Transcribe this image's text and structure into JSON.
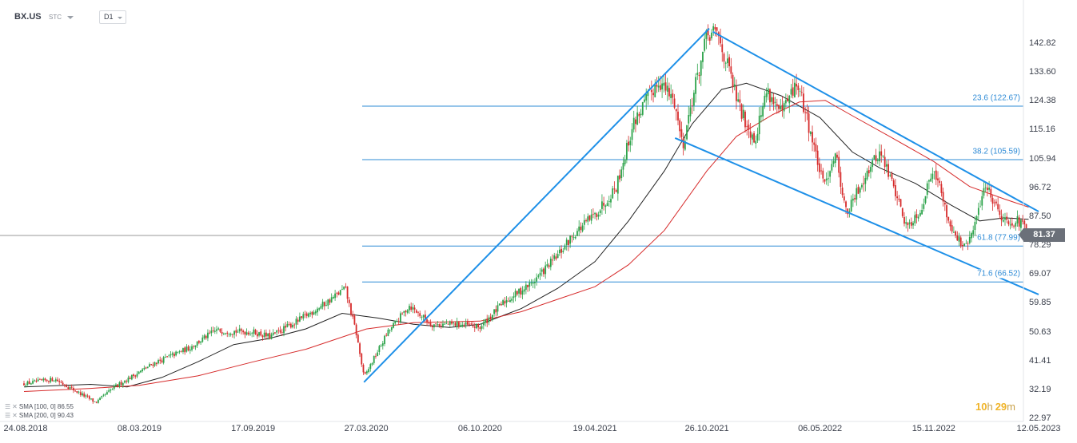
{
  "toolbar": {
    "symbol": "BX.US",
    "security_type": "STC",
    "timeframe": "D1"
  },
  "legend": [
    {
      "text": "SMA [100, 0] 86.55"
    },
    {
      "text": "SMA [200, 0] 90.43"
    }
  ],
  "timer": {
    "hours": "10",
    "hours_unit": "h",
    "minutes": "29",
    "minutes_unit": "m"
  },
  "last_price": "81.37",
  "colors": {
    "up": "#2ca34a",
    "down": "#d62b2b",
    "sma100": "#222222",
    "sma200": "#d62b2b",
    "trend": "#1e90e8",
    "fib": "#2e8bd6",
    "price_line": "#777777",
    "price_tag": "#6b7079",
    "timer": "#f0b429"
  },
  "chart_data": {
    "type": "candlestick",
    "title": "",
    "xlabel": "",
    "ylabel": "",
    "y_axis_side": "right",
    "ylim": [
      22.0,
      149.0
    ],
    "y_ticks": [
      "142.82",
      "133.60",
      "124.38",
      "115.16",
      "105.94",
      "96.72",
      "87.50",
      "78.29",
      "69.07",
      "59.85",
      "50.63",
      "41.41",
      "32.19",
      "22.97"
    ],
    "x_ticks": [
      "24.08.2018",
      "08.03.2019",
      "17.09.2019",
      "27.03.2020",
      "06.10.2020",
      "19.04.2021",
      "26.10.2021",
      "06.05.2022",
      "15.11.2022",
      "12.05.2023"
    ],
    "x_range": [
      "2018-08-24",
      "2023-05-12"
    ],
    "price_path": [
      [
        "2018-08-24",
        34.0
      ],
      [
        "2018-10-15",
        35.5
      ],
      [
        "2018-12-24",
        28.0
      ],
      [
        "2019-01-25",
        33.0
      ],
      [
        "2019-04-01",
        40.5
      ],
      [
        "2019-06-01",
        45.5
      ],
      [
        "2019-07-15",
        51.0
      ],
      [
        "2019-09-17",
        50.5
      ],
      [
        "2019-10-15",
        49.0
      ],
      [
        "2019-12-01",
        54.0
      ],
      [
        "2020-01-20",
        60.0
      ],
      [
        "2020-02-20",
        64.5
      ],
      [
        "2020-03-10",
        50.0
      ],
      [
        "2020-03-23",
        36.0
      ],
      [
        "2020-05-01",
        50.0
      ],
      [
        "2020-06-08",
        59.0
      ],
      [
        "2020-07-15",
        53.0
      ],
      [
        "2020-09-01",
        53.0
      ],
      [
        "2020-10-06",
        52.0
      ],
      [
        "2020-11-15",
        60.0
      ],
      [
        "2021-01-01",
        66.0
      ],
      [
        "2021-02-15",
        75.0
      ],
      [
        "2021-03-15",
        82.0
      ],
      [
        "2021-04-19",
        88.0
      ],
      [
        "2021-05-25",
        97.0
      ],
      [
        "2021-06-25",
        118.0
      ],
      [
        "2021-08-05",
        131.0
      ],
      [
        "2021-09-01",
        124.0
      ],
      [
        "2021-09-15",
        110.0
      ],
      [
        "2021-10-01",
        125.0
      ],
      [
        "2021-10-26",
        145.0
      ],
      [
        "2021-11-12",
        146.0
      ],
      [
        "2021-12-01",
        135.0
      ],
      [
        "2021-12-20",
        122.0
      ],
      [
        "2022-01-15",
        112.0
      ],
      [
        "2022-02-05",
        128.0
      ],
      [
        "2022-03-01",
        120.0
      ],
      [
        "2022-03-28",
        130.0
      ],
      [
        "2022-04-15",
        118.0
      ],
      [
        "2022-05-12",
        97.0
      ],
      [
        "2022-06-01",
        108.0
      ],
      [
        "2022-06-20",
        88.0
      ],
      [
        "2022-07-25",
        102.0
      ],
      [
        "2022-08-16",
        108.0
      ],
      [
        "2022-09-10",
        96.0
      ],
      [
        "2022-09-30",
        84.0
      ],
      [
        "2022-10-25",
        90.0
      ],
      [
        "2022-11-15",
        104.0
      ],
      [
        "2022-12-10",
        86.0
      ],
      [
        "2023-01-05",
        77.0
      ],
      [
        "2023-01-20",
        82.0
      ],
      [
        "2023-02-10",
        98.0
      ],
      [
        "2023-03-01",
        91.0
      ],
      [
        "2023-03-15",
        86.0
      ],
      [
        "2023-04-05",
        86.0
      ],
      [
        "2023-04-25",
        83.0
      ]
    ],
    "series": [
      {
        "name": "SMA [100, 0]",
        "points": [
          [
            "2018-08-24",
            33.0
          ],
          [
            "2018-12-15",
            33.8
          ],
          [
            "2019-02-15",
            33.0
          ],
          [
            "2019-04-15",
            36.0
          ],
          [
            "2019-06-15",
            41.0
          ],
          [
            "2019-08-15",
            46.5
          ],
          [
            "2019-10-15",
            48.5
          ],
          [
            "2019-12-15",
            51.5
          ],
          [
            "2020-02-15",
            56.5
          ],
          [
            "2020-04-15",
            55.0
          ],
          [
            "2020-06-15",
            53.0
          ],
          [
            "2020-08-15",
            52.0
          ],
          [
            "2020-10-06",
            53.0
          ],
          [
            "2020-12-15",
            58.0
          ],
          [
            "2021-02-15",
            64.5
          ],
          [
            "2021-04-19",
            73.0
          ],
          [
            "2021-06-15",
            86.0
          ],
          [
            "2021-08-15",
            102.0
          ],
          [
            "2021-10-01",
            117.0
          ],
          [
            "2021-11-20",
            128.0
          ],
          [
            "2022-01-01",
            130.0
          ],
          [
            "2022-03-01",
            126.0
          ],
          [
            "2022-05-06",
            119.0
          ],
          [
            "2022-06-30",
            108.0
          ],
          [
            "2022-08-15",
            103.0
          ],
          [
            "2022-10-15",
            98.0
          ],
          [
            "2022-12-15",
            91.0
          ],
          [
            "2023-02-01",
            86.0
          ],
          [
            "2023-03-15",
            87.0
          ],
          [
            "2023-04-25",
            86.55
          ]
        ]
      },
      {
        "name": "SMA [200, 0]",
        "points": [
          [
            "2018-08-24",
            31.5
          ],
          [
            "2018-12-15",
            32.5
          ],
          [
            "2019-03-08",
            33.5
          ],
          [
            "2019-06-15",
            36.5
          ],
          [
            "2019-09-17",
            41.0
          ],
          [
            "2019-12-15",
            45.0
          ],
          [
            "2020-03-27",
            51.5
          ],
          [
            "2020-06-15",
            53.5
          ],
          [
            "2020-10-06",
            54.0
          ],
          [
            "2020-12-15",
            57.0
          ],
          [
            "2021-02-15",
            61.0
          ],
          [
            "2021-04-19",
            65.0
          ],
          [
            "2021-06-15",
            72.0
          ],
          [
            "2021-08-15",
            83.0
          ],
          [
            "2021-10-26",
            102.0
          ],
          [
            "2021-12-15",
            113.0
          ],
          [
            "2022-02-15",
            120.0
          ],
          [
            "2022-04-01",
            124.0
          ],
          [
            "2022-05-15",
            124.5
          ],
          [
            "2022-07-01",
            119.5
          ],
          [
            "2022-09-01",
            113.0
          ],
          [
            "2022-11-15",
            105.0
          ],
          [
            "2023-01-15",
            97.0
          ],
          [
            "2023-03-15",
            93.0
          ],
          [
            "2023-04-25",
            90.43
          ]
        ]
      }
    ],
    "trend_lines": [
      {
        "from": [
          "2020-03-23",
          34.5
        ],
        "to": [
          "2021-10-30",
          147.5
        ]
      },
      {
        "from": [
          "2021-11-05",
          146.5
        ],
        "to": [
          "2023-05-12",
          89.0
        ]
      },
      {
        "from": [
          "2021-09-02",
          112.5
        ],
        "to": [
          "2023-05-12",
          62.5
        ]
      }
    ],
    "fib_levels": [
      {
        "label": "23.6 (122.67)",
        "value": 122.67
      },
      {
        "label": "38.2 (105.59)",
        "value": 105.59
      },
      {
        "label": "61.8 (77.99)",
        "value": 77.99
      },
      {
        "label": "71.6 (66.52)",
        "value": 66.52
      }
    ],
    "fib_start": "2020-03-20",
    "price_line": 81.37,
    "grid": false,
    "legend_position": "bottom-left"
  }
}
